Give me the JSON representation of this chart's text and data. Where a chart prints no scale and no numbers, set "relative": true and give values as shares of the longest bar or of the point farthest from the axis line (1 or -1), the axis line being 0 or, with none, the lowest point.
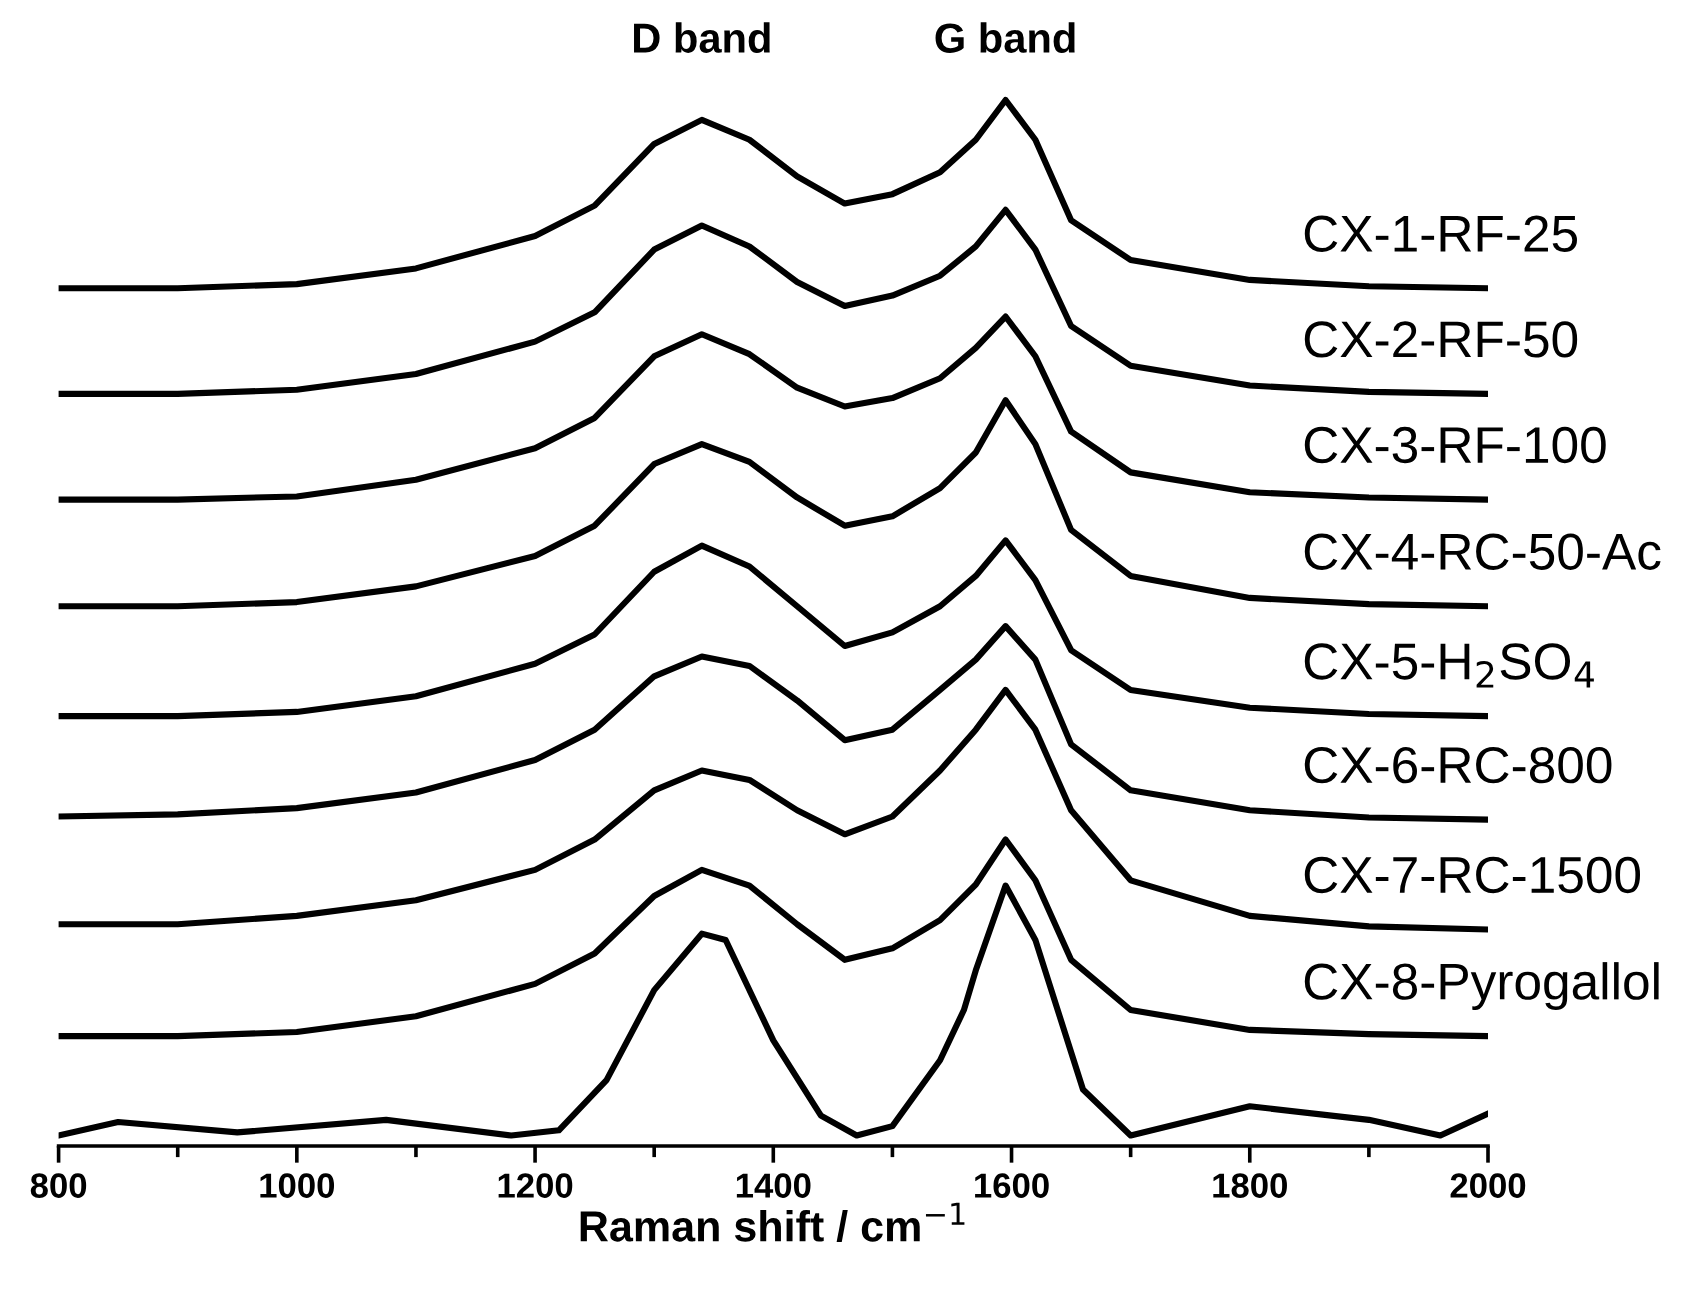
{
  "chart_data": {
    "type": "line",
    "relative": true,
    "xlabel": "Raman shift / cm$^{−1}$",
    "x": [
      800,
      900,
      1000,
      1100,
      1200,
      1250,
      1300,
      1340,
      1380,
      1420,
      1460,
      1500,
      1540,
      1570,
      1595,
      1620,
      1650,
      1700,
      1800,
      1900,
      2000
    ],
    "xlim": [
      800,
      2000
    ],
    "xticks": [
      800,
      {
        "value": 900,
        "label": null
      },
      1000,
      {
        "value": 1100,
        "label": null
      },
      1200,
      {
        "value": 1300,
        "label": null
      },
      1400,
      {
        "value": 1500,
        "label": null
      },
      1600,
      {
        "value": 1700,
        "label": null
      },
      1800,
      {
        "value": 1900,
        "label": null
      },
      2000
    ],
    "grid": false,
    "legend": false,
    "marker": "none",
    "line_style": "solid",
    "tick_labels": "x",
    "annotations": [
      "D band",
      "G band"
    ],
    "series": [
      {
        "name": "CX-1-RF-25",
        "color": "#000000",
        "values": [
          0.82,
          0.82,
          0.824,
          0.839,
          0.87,
          0.899,
          0.958,
          0.981,
          0.962,
          0.927,
          0.901,
          0.91,
          0.931,
          0.962,
          1.0,
          0.962,
          0.885,
          0.847,
          0.828,
          0.822,
          0.82
        ]
      },
      {
        "name": "CX-2-RF-50",
        "color": "#000000",
        "values": [
          0.719,
          0.719,
          0.723,
          0.738,
          0.769,
          0.797,
          0.857,
          0.88,
          0.86,
          0.826,
          0.803,
          0.813,
          0.832,
          0.86,
          0.895,
          0.857,
          0.784,
          0.746,
          0.727,
          0.721,
          0.719
        ]
      },
      {
        "name": "CX-3-RF-100",
        "color": "#000000",
        "values": [
          0.618,
          0.618,
          0.621,
          0.637,
          0.667,
          0.696,
          0.755,
          0.776,
          0.757,
          0.725,
          0.707,
          0.715,
          0.734,
          0.763,
          0.793,
          0.755,
          0.683,
          0.644,
          0.625,
          0.62,
          0.618
        ]
      },
      {
        "name": "CX-4-RC-50-Ac",
        "color": "#000000",
        "values": [
          0.516,
          0.516,
          0.52,
          0.535,
          0.564,
          0.593,
          0.652,
          0.671,
          0.654,
          0.62,
          0.593,
          0.602,
          0.629,
          0.663,
          0.713,
          0.671,
          0.589,
          0.545,
          0.524,
          0.518,
          0.516
        ]
      },
      {
        "name": "CX-5-H$_{2}$SO$_{4}$",
        "color": "#000000",
        "values": [
          0.411,
          0.411,
          0.415,
          0.43,
          0.461,
          0.489,
          0.549,
          0.574,
          0.554,
          0.516,
          0.478,
          0.491,
          0.516,
          0.545,
          0.579,
          0.541,
          0.474,
          0.436,
          0.419,
          0.413,
          0.411
        ]
      },
      {
        "name": "CX-6-RC-800",
        "color": "#000000",
        "values": [
          0.315,
          0.317,
          0.323,
          0.338,
          0.369,
          0.398,
          0.449,
          0.468,
          0.459,
          0.426,
          0.388,
          0.398,
          0.436,
          0.465,
          0.497,
          0.465,
          0.384,
          0.34,
          0.321,
          0.314,
          0.312
        ]
      },
      {
        "name": "CX-7-RC-1500",
        "color": "#000000",
        "values": [
          0.212,
          0.212,
          0.22,
          0.235,
          0.264,
          0.293,
          0.34,
          0.359,
          0.35,
          0.321,
          0.298,
          0.315,
          0.359,
          0.398,
          0.436,
          0.398,
          0.321,
          0.254,
          0.22,
          0.21,
          0.207
        ]
      },
      {
        "name": "CX-8-Pyrogallol",
        "color": "#000000",
        "values": [
          0.105,
          0.105,
          0.109,
          0.124,
          0.155,
          0.184,
          0.239,
          0.264,
          0.249,
          0.212,
          0.178,
          0.189,
          0.216,
          0.25,
          0.293,
          0.254,
          0.178,
          0.13,
          0.111,
          0.107,
          0.105
        ]
      },
      {
        "color": "#000000",
        "x": [
          800,
          850,
          950,
          1075,
          1180,
          1220,
          1260,
          1300,
          1340,
          1360,
          1400,
          1440,
          1470,
          1500,
          1540,
          1560,
          1570,
          1595,
          1620,
          1660,
          1700,
          1800,
          1900,
          1960,
          2000
        ],
        "values": [
          0.01,
          0.023,
          0.013,
          0.025,
          0.01,
          0.015,
          0.063,
          0.149,
          0.203,
          0.197,
          0.101,
          0.029,
          0.01,
          0.019,
          0.082,
          0.13,
          0.168,
          0.249,
          0.197,
          0.054,
          0.01,
          0.038,
          0.025,
          0.01,
          0.031
        ]
      }
    ]
  }
}
